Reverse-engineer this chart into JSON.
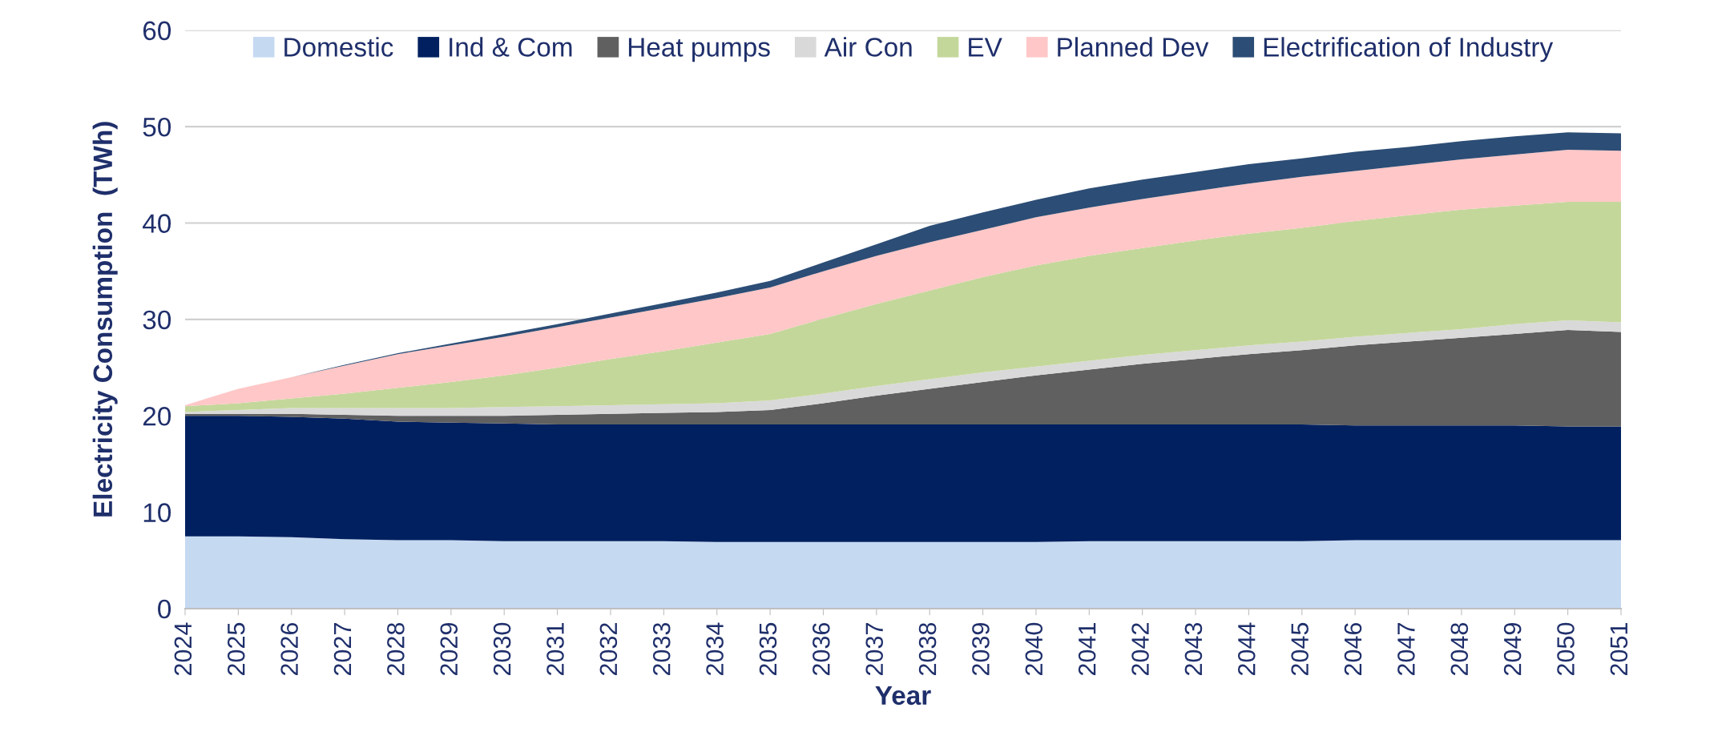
{
  "chart_data": {
    "type": "area",
    "stacked": true,
    "xlabel": "Year",
    "ylabel": "Electricity Consumption  (TWh)",
    "categories": [
      "2024",
      "2025",
      "2026",
      "2027",
      "2028",
      "2029",
      "2030",
      "2031",
      "2032",
      "2033",
      "2034",
      "2035",
      "2036",
      "2037",
      "2038",
      "2039",
      "2040",
      "2041",
      "2042",
      "2043",
      "2044",
      "2045",
      "2046",
      "2047",
      "2048",
      "2049",
      "2050",
      "2051"
    ],
    "ylim": [
      0,
      60
    ],
    "yticks": [
      0,
      10,
      20,
      30,
      40,
      50,
      60
    ],
    "grid": "y",
    "legend": "top",
    "series": [
      {
        "name": "Domestic",
        "color": "#c5d9f1",
        "values": [
          7.5,
          7.5,
          7.4,
          7.2,
          7.1,
          7.1,
          7.0,
          7.0,
          7.0,
          7.0,
          6.9,
          6.9,
          6.9,
          6.9,
          6.9,
          6.9,
          6.9,
          7.0,
          7.0,
          7.0,
          7.0,
          7.0,
          7.1,
          7.1,
          7.1,
          7.1,
          7.1,
          7.1
        ]
      },
      {
        "name": "Ind & Com",
        "color": "#002060",
        "values": [
          12.5,
          12.5,
          12.5,
          12.5,
          12.3,
          12.2,
          12.2,
          12.1,
          12.1,
          12.1,
          12.2,
          12.2,
          12.2,
          12.2,
          12.2,
          12.2,
          12.2,
          12.1,
          12.1,
          12.1,
          12.1,
          12.1,
          11.9,
          11.9,
          11.9,
          11.9,
          11.8,
          11.8
        ]
      },
      {
        "name": "Heat pumps",
        "color": "#606060",
        "values": [
          0.2,
          0.2,
          0.3,
          0.4,
          0.6,
          0.7,
          0.8,
          1.0,
          1.1,
          1.2,
          1.3,
          1.5,
          2.2,
          3.0,
          3.7,
          4.4,
          5.1,
          5.7,
          6.3,
          6.8,
          7.3,
          7.7,
          8.3,
          8.7,
          9.1,
          9.5,
          10.0,
          9.8
        ]
      },
      {
        "name": "Air Con",
        "color": "#d9d9d9",
        "values": [
          0.2,
          0.4,
          0.6,
          0.7,
          0.8,
          0.8,
          0.9,
          0.9,
          0.9,
          0.9,
          0.9,
          1.0,
          1.0,
          1.0,
          1.0,
          1.0,
          0.9,
          0.9,
          0.9,
          0.9,
          0.9,
          0.9,
          0.9,
          0.9,
          0.9,
          1.0,
          1.0,
          1.0
        ]
      },
      {
        "name": "EV",
        "color": "#c4d79b",
        "values": [
          0.6,
          0.7,
          1.0,
          1.5,
          2.1,
          2.7,
          3.3,
          4.0,
          4.8,
          5.5,
          6.3,
          6.9,
          7.8,
          8.5,
          9.2,
          9.9,
          10.5,
          10.9,
          11.1,
          11.4,
          11.6,
          11.8,
          12.0,
          12.2,
          12.4,
          12.3,
          12.3,
          12.5
        ]
      },
      {
        "name": "Planned Dev",
        "color": "#ffc7c7",
        "values": [
          0.1,
          1.5,
          2.2,
          2.9,
          3.5,
          3.8,
          4.0,
          4.2,
          4.3,
          4.5,
          4.6,
          4.8,
          4.9,
          5.0,
          5.0,
          4.9,
          5.0,
          5.0,
          5.1,
          5.1,
          5.2,
          5.3,
          5.2,
          5.2,
          5.2,
          5.3,
          5.4,
          5.3
        ]
      },
      {
        "name": "Electrification of Industry",
        "color": "#2c4d75",
        "values": [
          0,
          0,
          0,
          0.1,
          0.1,
          0.2,
          0.3,
          0.3,
          0.4,
          0.5,
          0.6,
          0.7,
          0.9,
          1.2,
          1.7,
          1.8,
          1.8,
          2.0,
          2.0,
          2.0,
          2.0,
          1.9,
          2.0,
          1.9,
          1.9,
          1.9,
          1.8,
          1.8
        ]
      }
    ]
  }
}
